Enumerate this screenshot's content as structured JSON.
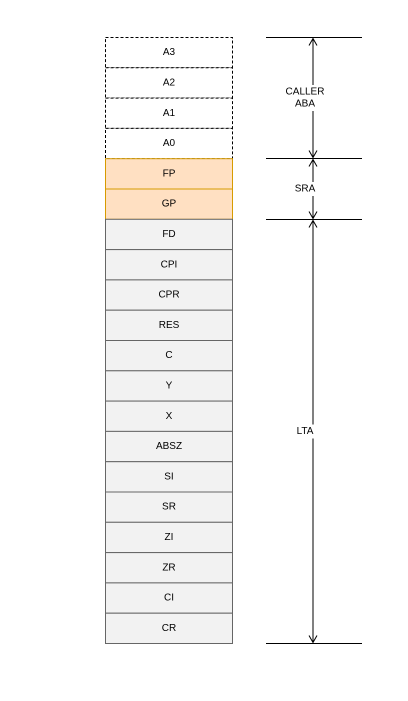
{
  "stack": {
    "cells": [
      {
        "label": "A3",
        "style": "dashed"
      },
      {
        "label": "A2",
        "style": "dashed"
      },
      {
        "label": "A1",
        "style": "dashed"
      },
      {
        "label": "A0",
        "style": "dashed"
      },
      {
        "label": "FP",
        "style": "highlight"
      },
      {
        "label": "GP",
        "style": "highlight"
      },
      {
        "label": "FD",
        "style": "normal"
      },
      {
        "label": "CPI",
        "style": "normal"
      },
      {
        "label": "CPR",
        "style": "normal"
      },
      {
        "label": "RES",
        "style": "normal"
      },
      {
        "label": "C",
        "style": "normal"
      },
      {
        "label": "Y",
        "style": "normal"
      },
      {
        "label": "X",
        "style": "normal"
      },
      {
        "label": "ABSZ",
        "style": "normal"
      },
      {
        "label": "SI",
        "style": "normal"
      },
      {
        "label": "SR",
        "style": "normal"
      },
      {
        "label": "ZI",
        "style": "normal"
      },
      {
        "label": "ZR",
        "style": "normal"
      },
      {
        "label": "CI",
        "style": "normal"
      },
      {
        "label": "CR",
        "style": "normal"
      }
    ]
  },
  "ranges": [
    {
      "id": "caller-aba",
      "lines": [
        "CALLER",
        "ABA"
      ],
      "first_cell": 0,
      "last_cell": 3
    },
    {
      "id": "sra",
      "lines": [
        "SRA"
      ],
      "first_cell": 4,
      "last_cell": 5
    },
    {
      "id": "lta",
      "lines": [
        "LTA"
      ],
      "first_cell": 6,
      "last_cell": 19
    }
  ],
  "colors": {
    "dashed_fill": "#ffffff",
    "dashed_stroke": "#000000",
    "highlight_fill": "#ffe0c2",
    "highlight_stroke": "#d79b00",
    "normal_fill": "#f2f2f2",
    "normal_stroke": "#666666",
    "line": "#000000"
  }
}
